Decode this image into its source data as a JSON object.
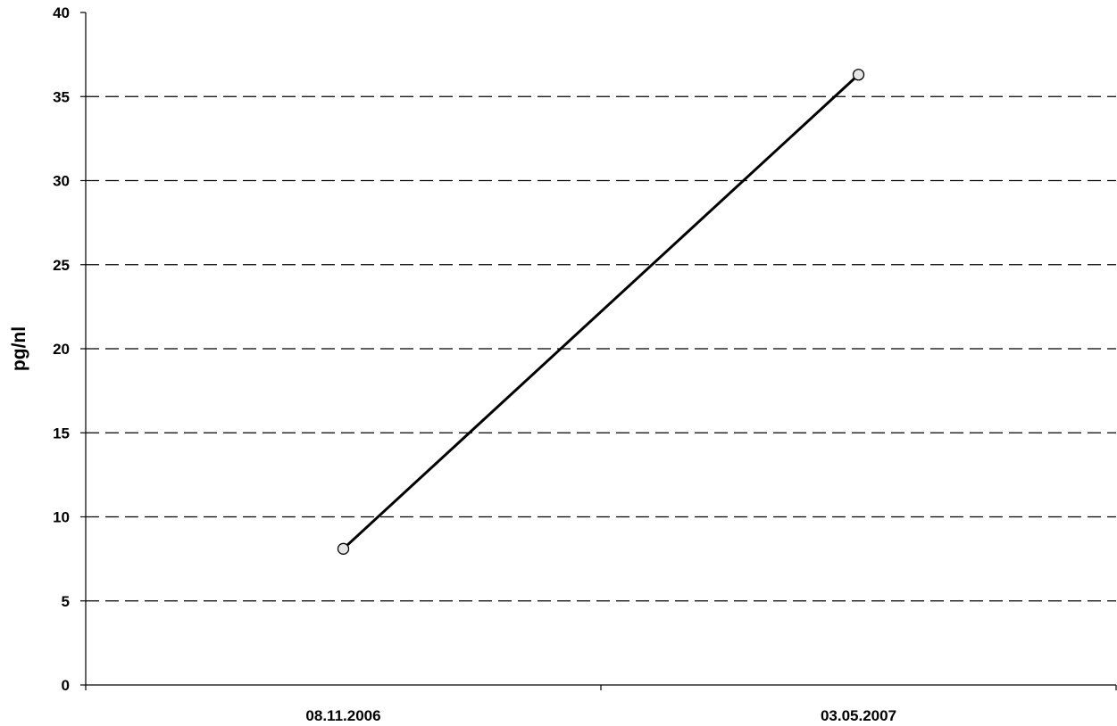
{
  "chart_data": {
    "type": "line",
    "title": "",
    "xlabel": "",
    "ylabel": "pg/nl",
    "categories": [
      "08.11.2006",
      "03.05.2007"
    ],
    "series": [
      {
        "values": [
          8.1,
          36.3
        ]
      }
    ],
    "ylim": [
      0,
      40
    ],
    "yticks": [
      "0",
      "5",
      "10",
      "15",
      "20",
      "25",
      "30",
      "35",
      "40"
    ],
    "grid": "horizontal dashed",
    "legend": "none",
    "colors": {
      "line": "#000000",
      "marker_fill": "#e6e6e6",
      "grid": "#000000",
      "axis": "#000000"
    }
  }
}
